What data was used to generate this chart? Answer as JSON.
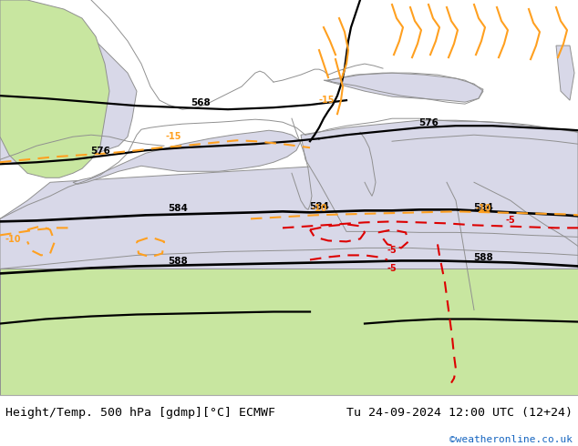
{
  "title_left": "Height/Temp. 500 hPa [gdmp][°C] ECMWF",
  "title_right": "Tu 24-09-2024 12:00 UTC (12+24)",
  "credit": "©weatheronline.co.uk",
  "fig_width": 6.34,
  "fig_height": 4.9,
  "dpi": 100,
  "credit_color": "#1565c0",
  "title_fontsize": 9.5,
  "credit_fontsize": 8,
  "land_color": "#c8e6a0",
  "sea_color": "#d8d8e8",
  "footer_color": "#ffffff",
  "coast_color": "#909090",
  "black_line_color": "#000000",
  "orange_color": "#FFA020",
  "red_color": "#dd0000"
}
